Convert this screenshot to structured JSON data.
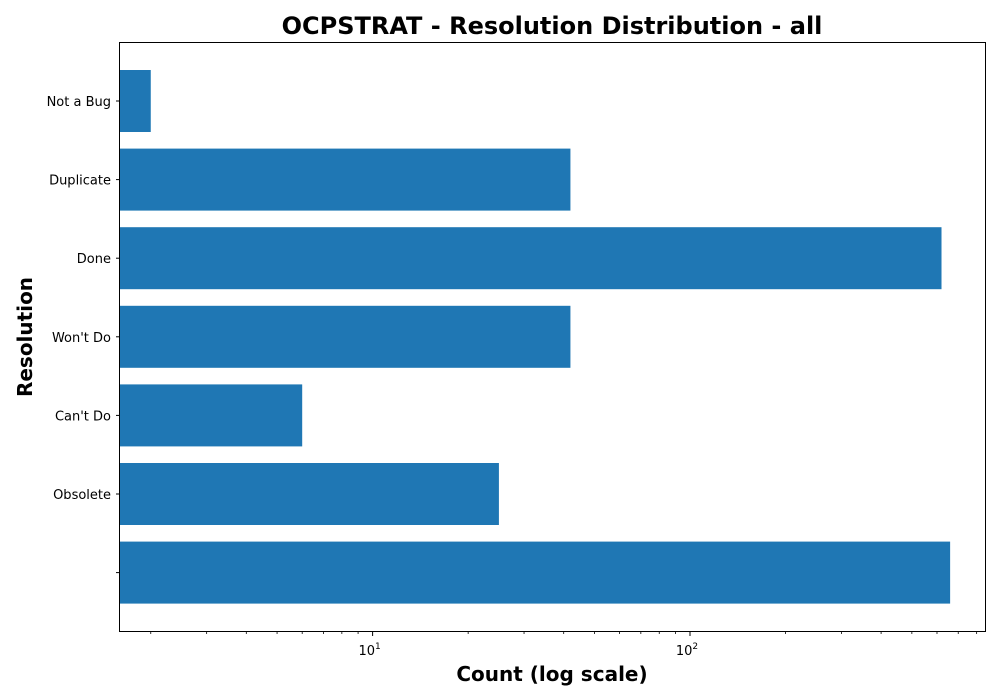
{
  "chart_data": {
    "type": "bar",
    "orientation": "horizontal",
    "title": "OCPSTRAT - Resolution Distribution - all",
    "xlabel": "Count (log scale)",
    "ylabel": "Resolution",
    "x_scale": "log",
    "xlim": [
      1.6,
      850
    ],
    "x_ticks": [
      {
        "value": 10,
        "base": "10",
        "exp": "1"
      },
      {
        "value": 100,
        "base": "10",
        "exp": "2"
      }
    ],
    "categories": [
      "Not a Bug",
      "Duplicate",
      "Done",
      "Won't Do",
      "Can't Do",
      "Obsolete",
      ""
    ],
    "values": [
      2,
      42,
      620,
      42,
      6,
      25,
      660
    ],
    "bar_color": "#1f77b4",
    "grid": false,
    "legend": "none"
  }
}
